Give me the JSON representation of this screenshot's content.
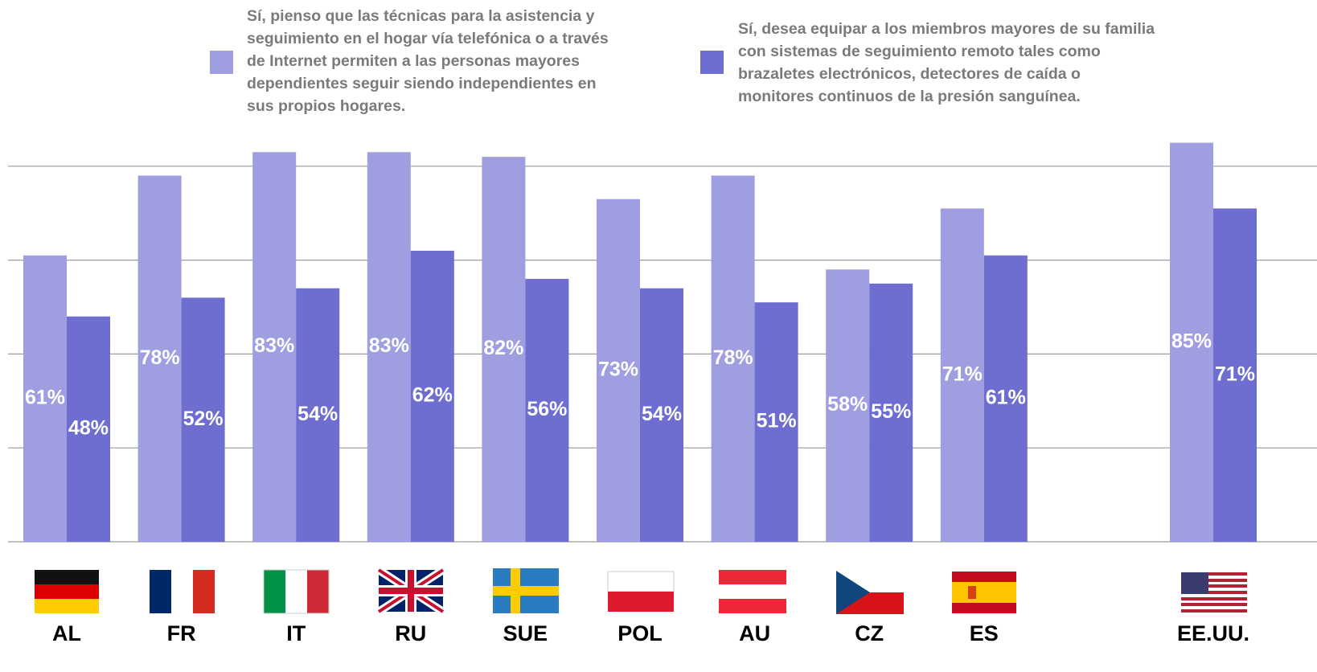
{
  "chart_data": {
    "type": "bar",
    "categories": [
      "AL",
      "FR",
      "IT",
      "RU",
      "SUE",
      "POL",
      "AU",
      "CZ",
      "ES",
      null,
      "EE.UU."
    ],
    "series": [
      {
        "name": "Sí, pienso que las técnicas para la asistencia y seguimiento en el hogar vía telefónica o a través de Internet permiten a las personas mayores dependientes seguir siendo independientes en sus propios hogares.",
        "color": "#9e9ee0",
        "values": [
          61,
          78,
          83,
          83,
          82,
          73,
          78,
          58,
          71,
          null,
          85
        ],
        "value_labels": [
          "61%",
          "78%",
          "83%",
          "83%",
          "82%",
          "73%",
          "78%",
          "58%",
          "71%",
          null,
          "85%"
        ]
      },
      {
        "name": "Sí, desea equipar a los miembros mayores de su familia con sistemas de seguimiento remoto tales como brazaletes electrónicos, detectores de caída o monitores continuos de la presión sanguínea.",
        "color": "#6e6ed0",
        "values": [
          48,
          52,
          54,
          62,
          56,
          54,
          51,
          55,
          61,
          null,
          71
        ],
        "value_labels": [
          "48%",
          "52%",
          "54%",
          "62%",
          "56%",
          "54%",
          "51%",
          "55%",
          "61%",
          null,
          "71%"
        ]
      }
    ],
    "ylim": [
      0,
      100
    ],
    "yticks": [
      0,
      20,
      40,
      60,
      80
    ],
    "grid": true
  }
}
